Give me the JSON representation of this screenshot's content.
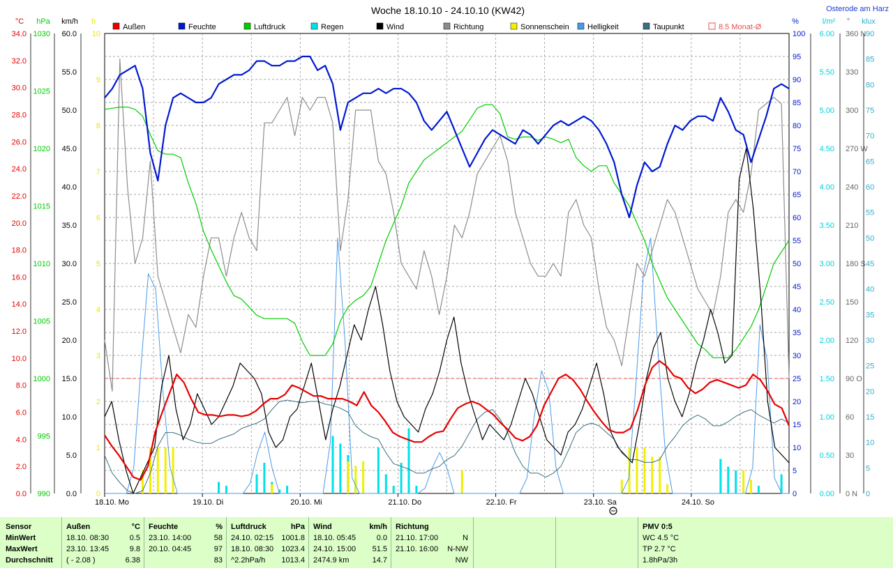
{
  "title": "Woche 18.10.10 - 24.10.10 (KW42)",
  "location_label": "Osterode am Harz",
  "legend": [
    {
      "label": "Außen",
      "color": "#e60000"
    },
    {
      "label": "Feuchte",
      "color": "#0019d0"
    },
    {
      "label": "Luftdruck",
      "color": "#00cc00"
    },
    {
      "label": "Regen",
      "color": "#00e0ea"
    },
    {
      "label": "Wind",
      "color": "#000000"
    },
    {
      "label": "Richtung",
      "color": "#8c8c8c"
    },
    {
      "label": "Sonnenschein",
      "color": "#f0f000"
    },
    {
      "label": "Helligkeit",
      "color": "#4a9ae8"
    },
    {
      "label": "Taupunkt",
      "color": "#3a7080"
    },
    {
      "label": "8.5 Monat-Ø",
      "color": "#e85050"
    }
  ],
  "chart_data": {
    "type": "line",
    "x_labels": [
      "18.10.  Mo",
      "19.10.  Di",
      "20.10.  Mi",
      "21.10.  Do",
      "22.10.  Fr",
      "23.10.  Sa",
      "24.10.  So"
    ],
    "reference_line": {
      "label": "8.5 Monat-Ø",
      "unit": "°C",
      "value": 8.5
    },
    "axes": {
      "temperature": {
        "unit": "°C",
        "ticks": [
          "34.0",
          "32.0",
          "30.0",
          "28.0",
          "26.0",
          "24.0",
          "22.0",
          "20.0",
          "18.0",
          "16.0",
          "14.0",
          "12.0",
          "10.0",
          "8.0",
          "6.0",
          "4.0",
          "2.0",
          "0.0"
        ],
        "range": [
          0,
          34.0
        ]
      },
      "pressure": {
        "unit": "hPa",
        "ticks": [
          "1030",
          "1025",
          "1020",
          "1015",
          "1010",
          "1005",
          "1000",
          "995",
          "990"
        ],
        "range": [
          990,
          1030
        ]
      },
      "wind": {
        "unit": "km/h",
        "ticks": [
          "60.0",
          "55.0",
          "50.0",
          "45.0",
          "40.0",
          "35.0",
          "30.0",
          "25.0",
          "20.0",
          "15.0",
          "10.0",
          "5.0",
          "0.0"
        ],
        "range": [
          0,
          60
        ]
      },
      "sunshine": {
        "unit": "h",
        "ticks": [
          "10",
          "9",
          "8",
          "7",
          "6",
          "5",
          "4",
          "3",
          "2",
          "1",
          "0"
        ],
        "range": [
          0,
          10
        ]
      },
      "humidity": {
        "unit": "%",
        "ticks": [
          "100",
          "95",
          "90",
          "85",
          "80",
          "75",
          "70",
          "65",
          "60",
          "55",
          "50",
          "45",
          "40",
          "35",
          "30",
          "25",
          "20",
          "15",
          "10",
          "5",
          "0"
        ],
        "range": [
          0,
          100
        ]
      },
      "rain": {
        "unit": "l/m²",
        "ticks": [
          "6.00",
          "5.50",
          "5.00",
          "4.50",
          "4.00",
          "3.50",
          "3.00",
          "2.50",
          "2.00",
          "1.50",
          "1.00",
          "0.50",
          "0.00"
        ],
        "range": [
          0,
          6
        ]
      },
      "direction": {
        "unit": "°",
        "ticks": [
          "360 N",
          "330",
          "300",
          "270 W",
          "240",
          "210",
          "180 S",
          "150",
          "120",
          "90  O",
          "60",
          "30",
          "0   N"
        ],
        "range": [
          0,
          360
        ]
      },
      "brightness": {
        "unit": "klux",
        "ticks": [
          "90",
          "85",
          "80",
          "75",
          "70",
          "65",
          "60",
          "55",
          "50",
          "45",
          "40",
          "35",
          "30",
          "25",
          "20",
          "15",
          "10",
          "5",
          "0"
        ],
        "range": [
          0,
          90
        ]
      }
    },
    "series": [
      {
        "name": "Außen",
        "axis": "temperature",
        "color": "#e60000",
        "width": 2.2,
        "values": [
          4.3,
          3.5,
          2.8,
          2.0,
          1.2,
          1.0,
          2.0,
          4.5,
          6.0,
          7.4,
          8.8,
          8.2,
          7.0,
          6.0,
          5.8,
          5.8,
          5.7,
          5.8,
          5.8,
          5.7,
          5.8,
          6.1,
          6.6,
          7.0,
          7.0,
          7.3,
          8.0,
          7.8,
          7.5,
          7.2,
          7.2,
          7.0,
          7.0,
          7.0,
          6.8,
          6.5,
          7.5,
          6.5,
          6.0,
          5.3,
          4.5,
          4.2,
          4.0,
          3.8,
          3.8,
          4.2,
          4.5,
          4.6,
          5.5,
          6.3,
          6.6,
          6.8,
          6.6,
          6.2,
          5.8,
          5.2,
          4.7,
          4.1,
          3.9,
          4.2,
          5.0,
          6.5,
          7.5,
          8.5,
          8.8,
          8.4,
          7.7,
          6.8,
          6.0,
          5.3,
          4.7,
          4.5,
          4.5,
          4.8,
          6.2,
          8.0,
          9.3,
          9.8,
          9.4,
          8.7,
          8.5,
          7.8,
          7.4,
          7.7,
          8.2,
          8.4,
          8.2,
          8.0,
          7.8,
          8.0,
          8.8,
          8.4,
          7.6,
          6.6,
          6.3,
          5.0
        ]
      },
      {
        "name": "Feuchte",
        "axis": "humidity",
        "color": "#0019d0",
        "width": 2.2,
        "values": [
          86,
          88,
          91,
          92,
          93,
          88,
          74,
          68,
          80,
          86,
          87,
          86,
          85,
          85,
          86,
          89,
          90,
          91,
          91,
          92,
          94,
          94,
          93,
          93,
          94,
          94,
          95,
          95,
          92,
          93,
          89,
          79,
          85,
          86,
          87,
          87,
          88,
          87,
          88,
          88,
          87,
          85,
          81,
          79,
          81,
          83,
          79,
          75,
          71,
          74,
          77,
          79,
          78,
          77,
          76,
          79,
          78,
          76,
          78,
          80,
          81,
          80,
          81,
          82,
          81,
          79,
          76,
          72,
          65,
          60,
          67,
          72,
          70,
          71,
          76,
          80,
          79,
          81,
          82,
          82,
          81,
          86,
          83,
          79,
          78,
          72,
          77,
          82,
          88,
          89,
          88
        ]
      },
      {
        "name": "Luftdruck",
        "axis": "pressure",
        "color": "#00cc00",
        "width": 1.2,
        "values": [
          1023.4,
          1023.5,
          1023.6,
          1023.6,
          1023.4,
          1022.8,
          1021.2,
          1019.8,
          1019.5,
          1019.5,
          1019.2,
          1017.0,
          1015.2,
          1012.8,
          1011.2,
          1009.8,
          1008.4,
          1007.2,
          1006.9,
          1006.2,
          1005.5,
          1005.2,
          1005.2,
          1005.2,
          1005.2,
          1004.8,
          1003.2,
          1002.0,
          1002.0,
          1002.0,
          1003.0,
          1005.0,
          1006.2,
          1006.8,
          1007.2,
          1008.0,
          1010.0,
          1012.0,
          1013.5,
          1015.0,
          1017.0,
          1018.0,
          1019.0,
          1019.5,
          1020.0,
          1020.5,
          1021.0,
          1021.5,
          1022.5,
          1023.5,
          1023.8,
          1023.8,
          1023.0,
          1021.0,
          1020.8,
          1021.0,
          1021.0,
          1020.7,
          1021.0,
          1020.8,
          1020.5,
          1020.8,
          1019.2,
          1018.5,
          1018.0,
          1018.5,
          1018.5,
          1017.0,
          1016.0,
          1015.0,
          1013.5,
          1012.0,
          1010.0,
          1008.5,
          1007.0,
          1006.0,
          1005.0,
          1004.0,
          1003.0,
          1002.5,
          1001.8,
          1001.8,
          1001.8,
          1002.5,
          1003.5,
          1004.5,
          1006.0,
          1008.0,
          1010.0,
          1011.0,
          1012.0
        ]
      },
      {
        "name": "Taupunkt",
        "axis": "temperature",
        "color": "#3a7080",
        "width": 1,
        "values": [
          2.8,
          1.5,
          0.8,
          0.2,
          0.0,
          0.2,
          1.5,
          3.5,
          4.5,
          4.5,
          4.3,
          4.0,
          3.8,
          3.7,
          3.7,
          4.0,
          4.2,
          4.4,
          4.8,
          5.0,
          5.2,
          5.5,
          6.2,
          6.8,
          6.9,
          6.8,
          6.7,
          6.8,
          6.8,
          6.6,
          6.5,
          6.3,
          6.0,
          5.0,
          4.5,
          4.2,
          4.0,
          3.0,
          2.2,
          2.0,
          1.8,
          1.5,
          1.5,
          1.8,
          2.0,
          2.5,
          2.8,
          3.5,
          4.5,
          5.5,
          6.0,
          6.2,
          5.5,
          4.5,
          3.0,
          2.0,
          1.5,
          1.5,
          1.2,
          1.5,
          2.0,
          3.2,
          4.5,
          5.0,
          5.2,
          5.0,
          4.5,
          4.0,
          3.0,
          2.5,
          2.5,
          2.3,
          2.3,
          2.5,
          3.5,
          4.2,
          5.0,
          5.5,
          5.8,
          5.5,
          5.0,
          5.0,
          5.3,
          5.7,
          6.0,
          6.2,
          5.8,
          5.5,
          5.2,
          5.5,
          5.2
        ]
      },
      {
        "name": "Richtung",
        "axis": "direction",
        "color": "#8c8c8c",
        "width": 1.2,
        "values": [
          120,
          80,
          340,
          240,
          180,
          200,
          260,
          170,
          150,
          130,
          110,
          140,
          130,
          170,
          200,
          200,
          170,
          200,
          220,
          200,
          190,
          290,
          290,
          300,
          310,
          280,
          310,
          300,
          310,
          310,
          290,
          190,
          230,
          300,
          300,
          300,
          260,
          250,
          220,
          180,
          170,
          160,
          190,
          170,
          140,
          170,
          210,
          200,
          220,
          250,
          260,
          270,
          280,
          260,
          220,
          200,
          180,
          170,
          170,
          180,
          170,
          220,
          230,
          210,
          200,
          160,
          130,
          120,
          100,
          140,
          180,
          170,
          190,
          210,
          230,
          220,
          200,
          180,
          160,
          150,
          140,
          170,
          220,
          230,
          220,
          250,
          300,
          305,
          310,
          305,
          90
        ]
      },
      {
        "name": "Wind",
        "axis": "wind",
        "color": "#000000",
        "width": 1.2,
        "values": [
          10,
          12,
          7,
          3,
          0,
          2,
          4,
          6,
          14,
          18,
          11,
          7,
          9,
          13,
          11,
          9,
          10,
          12,
          14,
          17,
          16,
          15,
          13,
          8,
          6,
          7,
          10,
          11,
          14,
          17,
          12,
          7,
          11,
          14,
          18,
          22,
          20,
          24,
          27,
          22,
          16,
          12,
          10,
          9,
          8,
          11,
          13,
          16,
          20,
          23,
          17,
          13,
          10,
          7,
          9,
          8,
          7,
          9,
          12,
          15,
          13,
          10,
          7,
          6,
          5,
          8,
          9,
          11,
          14,
          17,
          13,
          8,
          6,
          5,
          4,
          9,
          15,
          19,
          21,
          15,
          12,
          10,
          13,
          17,
          20,
          24,
          21,
          17,
          18,
          41,
          45,
          37,
          26,
          12,
          6,
          5,
          4
        ]
      },
      {
        "name": "Helligkeit",
        "axis": "brightness",
        "color": "#4a9ae8",
        "width": 1,
        "values": [
          0,
          0,
          0,
          0,
          5,
          25,
          43,
          40,
          20,
          5,
          0,
          0,
          0,
          0,
          0,
          0,
          0,
          0,
          0,
          0,
          2,
          8,
          12,
          5,
          0,
          0,
          0,
          0,
          0,
          0,
          0,
          10,
          50,
          30,
          3,
          0,
          0,
          0,
          0,
          0,
          0,
          0,
          0,
          0,
          1,
          5,
          8,
          5,
          0,
          0,
          0,
          0,
          0,
          0,
          0,
          0,
          0,
          0,
          3,
          15,
          24,
          20,
          5,
          0,
          0,
          0,
          0,
          0,
          0,
          0,
          0,
          0,
          3,
          22,
          43,
          50,
          28,
          8,
          0,
          0,
          0,
          0,
          0,
          0,
          0,
          0,
          0,
          0,
          0,
          5,
          33,
          26,
          3,
          0,
          0
        ]
      },
      {
        "name": "Regen",
        "axis": "rain",
        "type": "bars",
        "color": "#00e0ea",
        "values": [
          0,
          0,
          0,
          0,
          0,
          0,
          0,
          0,
          0,
          0,
          0,
          0,
          0,
          0,
          0,
          0.15,
          0.1,
          0,
          0,
          0,
          0.25,
          0.4,
          0.15,
          0.05,
          0.1,
          0,
          0,
          0,
          0,
          0,
          0.75,
          0.65,
          0.5,
          0.2,
          0,
          0,
          0.6,
          0.25,
          0.1,
          0.4,
          0.85,
          0.1,
          0,
          0,
          0,
          0,
          0,
          0,
          0,
          0,
          0,
          0,
          0,
          0,
          0,
          0,
          0,
          0,
          0,
          0,
          0,
          0,
          0,
          0,
          0,
          0,
          0,
          0,
          0,
          0,
          0,
          0,
          0,
          0,
          0,
          0,
          0,
          0,
          0,
          0,
          0,
          0.45,
          0.35,
          0.3,
          0,
          0,
          0.1,
          0,
          0,
          0.25,
          0
        ]
      },
      {
        "name": "Sonnenschein",
        "axis": "sunshine",
        "type": "bars",
        "color": "#f0f000",
        "values": [
          0,
          0,
          0,
          0,
          0,
          0.5,
          1.0,
          1.0,
          1.0,
          1.0,
          0,
          0,
          0,
          0,
          0,
          0,
          0,
          0,
          0,
          0,
          0,
          0,
          0.2,
          0,
          0,
          0,
          0,
          0,
          0,
          0,
          0,
          0,
          0.7,
          0.6,
          0.7,
          0,
          0,
          0,
          0,
          0,
          0,
          0,
          0,
          0,
          0,
          0,
          0,
          0.5,
          0,
          0,
          0,
          0,
          0,
          0,
          0,
          0,
          0,
          0,
          0,
          0,
          0,
          0,
          0,
          0,
          0,
          0,
          0,
          0,
          0.3,
          1.0,
          1.0,
          1.0,
          0.8,
          0.8,
          0.2,
          0,
          0,
          0,
          0,
          0,
          0,
          0,
          0,
          0,
          0.5,
          0.3,
          0,
          0,
          0,
          0,
          0
        ]
      }
    ]
  },
  "stats": {
    "headers": {
      "sensor": "Sensor",
      "aussen": "Außen",
      "aussen_unit": "°C",
      "feuchte": "Feuchte",
      "feuchte_unit": "%",
      "luftdruck": "Luftdruck",
      "luftdruck_unit": "hPa",
      "wind": "Wind",
      "wind_unit": "km/h",
      "richtung": "Richtung",
      "pmv": "PMV 0:5"
    },
    "row_labels": [
      "MinWert",
      "MaxWert",
      "Durchschnitt"
    ],
    "aussen": [
      [
        "18.10.  08:30",
        "0.5"
      ],
      [
        "23.10.  13:45",
        "9.8"
      ],
      [
        "( - 2.08 )",
        "6.38"
      ]
    ],
    "feuchte": [
      [
        "23.10.  14:00",
        "58"
      ],
      [
        "20.10.  04:45",
        "97"
      ],
      [
        "",
        "83"
      ]
    ],
    "luftdruck": [
      [
        "24.10.  02:15",
        "1001.8"
      ],
      [
        "18.10.  08:30",
        "1023.4"
      ],
      [
        "^2.2hPa/h",
        "1013.4"
      ]
    ],
    "wind": [
      [
        "18.10.  05:45",
        "0.0"
      ],
      [
        "24.10.  15:00",
        "51.5"
      ],
      [
        "2474.9 km",
        "14.7"
      ]
    ],
    "richtung": [
      [
        "21.10.  17:00",
        "N"
      ],
      [
        "21.10.  16:00",
        "N-NW"
      ],
      [
        "",
        "NW"
      ]
    ],
    "pmv": [
      "WC 4.5 °C",
      "TP 2.7 °C",
      "1.8hPa/3h"
    ]
  }
}
